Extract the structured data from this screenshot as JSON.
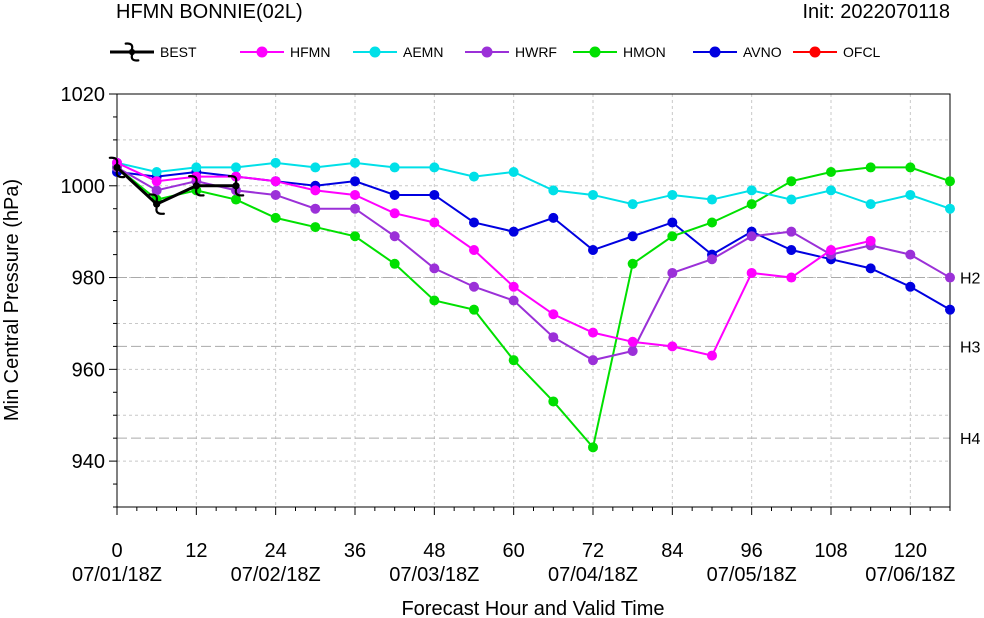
{
  "header": {
    "title": "HFMN BONNIE(02L)",
    "init": "Init: 2022070118"
  },
  "chart_data": {
    "type": "line",
    "xlabel": "Forecast Hour and Valid Time",
    "ylabel": "Min Central Pressure (hPa)",
    "xlim": [
      0,
      126
    ],
    "ylim": [
      930,
      1020
    ],
    "x_ticks": [
      0,
      12,
      24,
      36,
      48,
      60,
      72,
      84,
      96,
      108,
      120
    ],
    "x_tick_dates": [
      "07/01/18Z",
      "",
      "07/02/18Z",
      "",
      "07/03/18Z",
      "",
      "07/04/18Z",
      "",
      "07/05/18Z",
      "",
      "07/06/18Z"
    ],
    "y_ticks": [
      940,
      960,
      980,
      1000,
      1020
    ],
    "grid": true,
    "legend_position": "top",
    "reference_lines": [
      {
        "label": "H2",
        "y": 980
      },
      {
        "label": "H3",
        "y": 965
      },
      {
        "label": "H4",
        "y": 945
      }
    ],
    "series": [
      {
        "name": "BEST",
        "color": "#000000",
        "symbol": "hurricane-icon",
        "x": [
          0,
          6,
          12,
          18
        ],
        "y": [
          1004,
          996,
          1000,
          1000
        ]
      },
      {
        "name": "HFMN",
        "color": "#ff00ff",
        "symbol": "dot",
        "x": [
          0,
          6,
          12,
          18,
          24,
          30,
          36,
          42,
          48,
          54,
          60,
          66,
          72,
          78,
          84,
          90,
          96,
          102,
          108,
          114
        ],
        "y": [
          1005,
          1001,
          1002,
          1002,
          1001,
          999,
          998,
          994,
          992,
          986,
          978,
          972,
          968,
          966,
          965,
          963,
          981,
          980,
          986,
          988
        ]
      },
      {
        "name": "AEMN",
        "color": "#00e0e8",
        "symbol": "dot",
        "x": [
          0,
          6,
          12,
          18,
          24,
          30,
          36,
          42,
          48,
          54,
          60,
          66,
          72,
          78,
          84,
          90,
          96,
          102,
          108,
          114,
          120,
          126
        ],
        "y": [
          1005,
          1003,
          1004,
          1004,
          1005,
          1004,
          1005,
          1004,
          1004,
          1002,
          1003,
          999,
          998,
          996,
          998,
          997,
          999,
          997,
          999,
          996,
          998,
          995
        ]
      },
      {
        "name": "HWRF",
        "color": "#9b30d8",
        "symbol": "dot",
        "x": [
          0,
          6,
          12,
          18,
          24,
          30,
          36,
          42,
          48,
          54,
          60,
          66,
          72,
          78,
          84,
          90,
          96,
          102,
          108,
          114,
          120,
          126
        ],
        "y": [
          1004,
          999,
          1001,
          999,
          998,
          995,
          995,
          989,
          982,
          978,
          975,
          967,
          962,
          964,
          981,
          984,
          989,
          990,
          985,
          987,
          985,
          980
        ]
      },
      {
        "name": "HMON",
        "color": "#00e000",
        "symbol": "dot",
        "x": [
          0,
          6,
          12,
          18,
          24,
          30,
          36,
          42,
          48,
          54,
          60,
          66,
          72,
          78,
          84,
          90,
          96,
          102,
          108,
          114,
          120,
          126
        ],
        "y": [
          1004,
          997,
          999,
          997,
          993,
          991,
          989,
          983,
          975,
          973,
          962,
          953,
          943,
          983,
          989,
          992,
          996,
          1001,
          1003,
          1004,
          1004,
          1001
        ]
      },
      {
        "name": "AVNO",
        "color": "#0000e0",
        "symbol": "dot",
        "x": [
          0,
          6,
          12,
          18,
          24,
          30,
          36,
          42,
          48,
          54,
          60,
          66,
          72,
          78,
          84,
          90,
          96,
          102,
          108,
          114,
          120,
          126
        ],
        "y": [
          1003,
          1002,
          1003,
          1002,
          1001,
          1000,
          1001,
          998,
          998,
          992,
          990,
          993,
          986,
          989,
          992,
          985,
          990,
          986,
          984,
          982,
          978,
          973
        ]
      },
      {
        "name": "OFCL",
        "color": "#ff0000",
        "symbol": "dot",
        "x": [],
        "y": []
      }
    ]
  }
}
